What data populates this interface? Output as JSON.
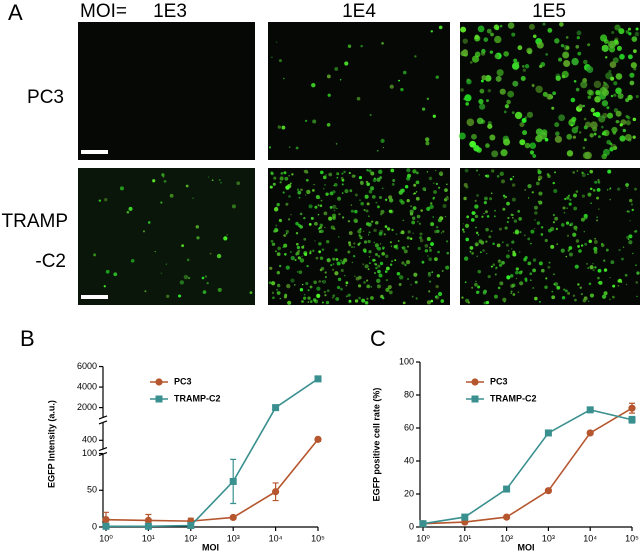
{
  "panel_a": {
    "label": "A",
    "moi_label": "MOI=",
    "columns": [
      "1E3",
      "1E4",
      "1E5"
    ],
    "rows": [
      [
        "PC3"
      ],
      [
        "TRAMP",
        "-C2"
      ]
    ]
  },
  "chart_data": [
    {
      "type": "line",
      "panel_label": "B",
      "xlabel": "MOI",
      "ylabel": "EGFP Intensity (a.u.)",
      "x": [
        1,
        10,
        100,
        1000,
        10000,
        100000
      ],
      "xscale": "log",
      "xlim": [
        1,
        100000
      ],
      "xticks": [
        {
          "value": 1,
          "label": "10⁰"
        },
        {
          "value": 10,
          "label": "10¹"
        },
        {
          "value": 100,
          "label": "10²"
        },
        {
          "value": 1000,
          "label": "10³"
        },
        {
          "value": 10000,
          "label": "10⁴"
        },
        {
          "value": 100000,
          "label": "10⁵"
        }
      ],
      "ylim": [
        0,
        6000
      ],
      "y_segments": [
        [
          0,
          100
        ],
        [
          300,
          600
        ],
        [
          1000,
          6000
        ]
      ],
      "yticks": [
        0,
        50,
        100,
        400,
        2000,
        4000,
        6000
      ],
      "series": [
        {
          "name": "PC3",
          "color": "#b5562e",
          "marker": "circle",
          "values": [
            10,
            9,
            8,
            13,
            48,
            410
          ],
          "errors": [
            10,
            8,
            4,
            2,
            12,
            20
          ]
        },
        {
          "name": "TRAMP-C2",
          "color": "#3a8f8f",
          "marker": "square",
          "values": [
            1,
            1,
            2,
            62,
            2000,
            4800
          ],
          "errors": [
            1,
            1,
            1,
            30,
            100,
            100
          ]
        }
      ]
    },
    {
      "type": "line",
      "panel_label": "C",
      "xlabel": "MOI",
      "ylabel": "EGFP positive cell rate (%)",
      "x": [
        1,
        10,
        100,
        1000,
        10000,
        100000
      ],
      "xscale": "log",
      "xlim": [
        1,
        100000
      ],
      "xticks": [
        {
          "value": 1,
          "label": "10⁰"
        },
        {
          "value": 10,
          "label": "10¹"
        },
        {
          "value": 100,
          "label": "10²"
        },
        {
          "value": 1000,
          "label": "10³"
        },
        {
          "value": 10000,
          "label": "10⁴"
        },
        {
          "value": 100000,
          "label": "10⁵"
        }
      ],
      "ylim": [
        0,
        100
      ],
      "yticks": [
        0,
        20,
        40,
        60,
        80,
        100
      ],
      "series": [
        {
          "name": "PC3",
          "color": "#b5562e",
          "marker": "circle",
          "values": [
            2,
            3,
            6,
            22,
            57,
            72
          ],
          "errors": [
            1,
            1,
            1,
            1,
            1,
            3
          ]
        },
        {
          "name": "TRAMP-C2",
          "color": "#3a8f8f",
          "marker": "square",
          "values": [
            2,
            6,
            23,
            57,
            71,
            65
          ],
          "errors": [
            1,
            1,
            1,
            1,
            1,
            2
          ]
        }
      ]
    }
  ]
}
